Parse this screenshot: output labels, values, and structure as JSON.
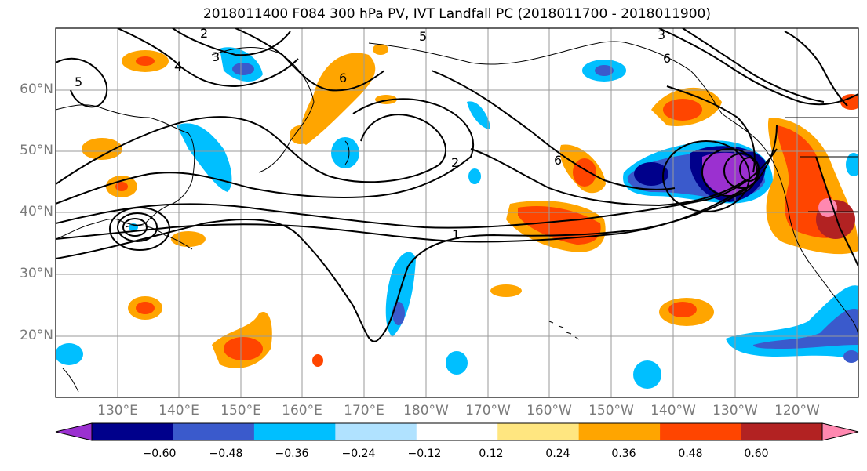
{
  "title": "2018011400 F084 300 hPa PV, IVT Landfall PC (2018011700 - 2018011900)",
  "lat_labels": [
    "60°N",
    "50°N",
    "40°N",
    "30°N",
    "20°N"
  ],
  "lon_labels": [
    "130°E",
    "140°E",
    "150°E",
    "160°E",
    "170°E",
    "180°W",
    "170°W",
    "160°W",
    "150°W",
    "140°W",
    "130°W",
    "120°W"
  ],
  "contour_labels": [
    "2",
    "3",
    "4",
    "5",
    "5",
    "6",
    "6",
    "3",
    "6",
    "1",
    "2"
  ],
  "colorbar": {
    "ticks": [
      "−0.60",
      "−0.48",
      "−0.36",
      "−0.24",
      "−0.12",
      "0.12",
      "0.24",
      "0.36",
      "0.48",
      "0.60"
    ],
    "colors": [
      "#9b30d0",
      "#00008b",
      "#3a5acc",
      "#00bfff",
      "#b0e2ff",
      "#ffffff",
      "#ffe680",
      "#ffa500",
      "#ff4500",
      "#b22222",
      "#ff88b0"
    ]
  }
}
